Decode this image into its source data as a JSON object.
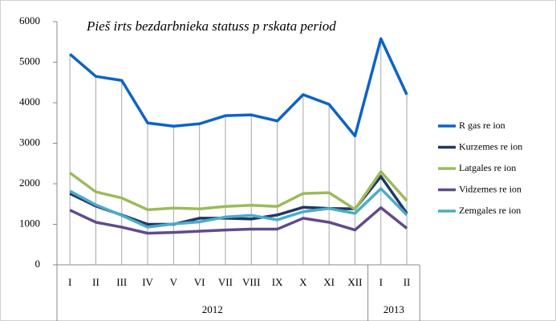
{
  "chart_data": {
    "type": "line",
    "title": "Pieš irts bezdarbnieka statuss p rskata period",
    "categories": [
      "I",
      "II",
      "III",
      "IV",
      "V",
      "VI",
      "VII",
      "VIII",
      "IX",
      "X",
      "XI",
      "XII",
      "I",
      "II"
    ],
    "category_groups": [
      {
        "name": "2012",
        "count": 12
      },
      {
        "name": "2013",
        "count": 2
      }
    ],
    "series": [
      {
        "name": "R gas re ion",
        "color": "#0b63c9",
        "values": [
          5200,
          4650,
          4550,
          3500,
          3420,
          3480,
          3680,
          3700,
          3550,
          4200,
          3960,
          3180,
          5580,
          4200
        ]
      },
      {
        "name": "Kurzemes re ion",
        "color": "#1f3864",
        "values": [
          1760,
          1450,
          1230,
          1000,
          1000,
          1150,
          1150,
          1130,
          1230,
          1420,
          1390,
          1380,
          2180,
          1270
        ]
      },
      {
        "name": "Latgales re ion",
        "color": "#9bbb59",
        "values": [
          2270,
          1800,
          1650,
          1360,
          1400,
          1380,
          1440,
          1470,
          1440,
          1760,
          1780,
          1370,
          2300,
          1580
        ]
      },
      {
        "name": "Vidzemes re ion",
        "color": "#5f4b8b",
        "values": [
          1350,
          1050,
          930,
          780,
          800,
          830,
          860,
          880,
          880,
          1150,
          1050,
          860,
          1410,
          900
        ]
      },
      {
        "name": "Zemgales re ion",
        "color": "#4bacc6",
        "values": [
          1820,
          1480,
          1220,
          930,
          1010,
          1060,
          1180,
          1220,
          1110,
          1310,
          1390,
          1270,
          1880,
          1230
        ]
      }
    ],
    "ylim": [
      0,
      6000
    ],
    "yticks": [
      0,
      1000,
      2000,
      3000,
      4000,
      5000,
      6000
    ],
    "grid": false,
    "drop_lines": true,
    "legend": "right"
  }
}
